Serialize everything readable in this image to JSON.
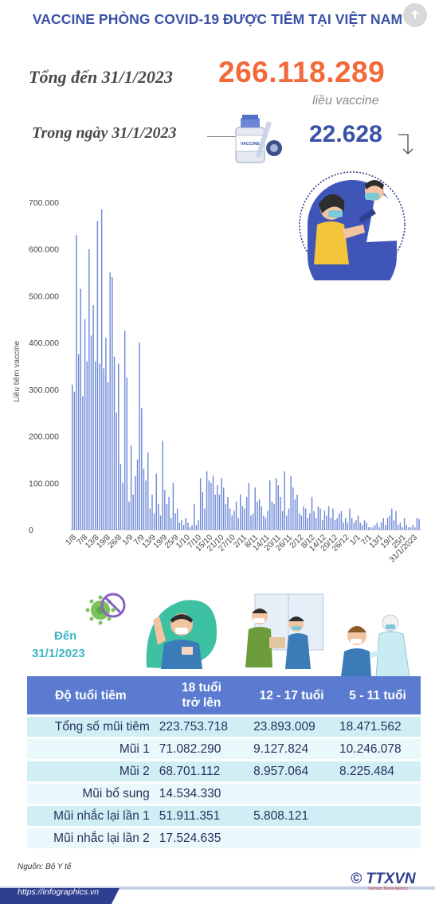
{
  "header": {
    "title": "VACCINE PHÒNG COVID-19 ĐƯỢC TIÊM TẠI VIỆT NAM"
  },
  "summary": {
    "total_label": "Tổng đến 31/1/2023",
    "total_value": "266.118.289",
    "total_unit": "liều vaccine",
    "day_label": "Trong ngày 31/1/2023",
    "day_value": "22.628",
    "vial_label": "VACCINE"
  },
  "chart_data": {
    "type": "bar",
    "ylabel": "Liều tiêm vaccine",
    "ylim": [
      0,
      700000
    ],
    "yticks": [
      "0",
      "100.000",
      "200.000",
      "300.000",
      "400.000",
      "500.000",
      "600.000",
      "700.000"
    ],
    "xticks": [
      "1/8",
      "7/8",
      "13/8",
      "19/8",
      "26/8",
      "1/9",
      "7/9",
      "13/9",
      "19/9",
      "25/9",
      "1/10",
      "7/10",
      "15/10",
      "21/10",
      "27/10",
      "2/11",
      "8/11",
      "14/11",
      "20/11",
      "26/11",
      "2/12",
      "8/12",
      "14/12",
      "20/12",
      "26/12",
      "1/1",
      "7/1",
      "13/1",
      "19/1",
      "25/1",
      "31/1/2023"
    ],
    "values": [
      310000,
      295000,
      630000,
      375000,
      515000,
      285000,
      450000,
      360000,
      600000,
      415000,
      480000,
      360000,
      660000,
      355000,
      685000,
      345000,
      410000,
      315000,
      550000,
      540000,
      370000,
      250000,
      355000,
      140000,
      100000,
      425000,
      325000,
      60000,
      180000,
      75000,
      115000,
      150000,
      400000,
      260000,
      130000,
      105000,
      165000,
      45000,
      75000,
      35000,
      120000,
      55000,
      30000,
      190000,
      85000,
      55000,
      70000,
      25000,
      100000,
      35000,
      45000,
      15000,
      20000,
      10000,
      25000,
      15000,
      5000,
      10000,
      55000,
      10000,
      20000,
      110000,
      80000,
      45000,
      125000,
      105000,
      100000,
      115000,
      75000,
      95000,
      75000,
      110000,
      90000,
      55000,
      70000,
      45000,
      30000,
      40000,
      60000,
      25000,
      75000,
      50000,
      45000,
      70000,
      100000,
      30000,
      35000,
      90000,
      60000,
      65000,
      50000,
      30000,
      25000,
      40000,
      105000,
      60000,
      55000,
      110000,
      95000,
      70000,
      40000,
      125000,
      30000,
      45000,
      115000,
      90000,
      65000,
      75000,
      35000,
      30000,
      50000,
      45000,
      25000,
      35000,
      70000,
      40000,
      25000,
      50000,
      45000,
      20000,
      40000,
      30000,
      50000,
      25000,
      45000,
      20000,
      25000,
      35000,
      40000,
      15000,
      25000,
      15000,
      45000,
      25000,
      15000,
      20000,
      30000,
      15000,
      10000,
      20000,
      15000,
      5000,
      5000,
      5000,
      10000,
      15000,
      5000,
      15000,
      25000,
      10000,
      25000,
      30000,
      45000,
      20000,
      40000,
      10000,
      15000,
      5000,
      25000,
      10000,
      5000,
      5000,
      10000,
      5000,
      25000,
      22628
    ]
  },
  "coverage": {
    "as_of_line1": "Đến",
    "as_of_line2": "31/1/2023",
    "table": {
      "headers": [
        "Độ tuổi tiêm",
        "18 tuổi\ntrở lên",
        "12 - 17 tuổi",
        "5 - 11 tuổi"
      ],
      "rows": [
        [
          "Tổng số mũi tiêm",
          "223.753.718",
          "23.893.009",
          "18.471.562"
        ],
        [
          "Mũi 1",
          "71.082.290",
          "9.127.824",
          "10.246.078"
        ],
        [
          "Mũi 2",
          "68.701.112",
          "8.957.064",
          "8.225.484"
        ],
        [
          "Mũi bổ sung",
          "14.534.330",
          "",
          ""
        ],
        [
          "Mũi nhắc lại lần 1",
          "51.911.351",
          "5.808.121",
          ""
        ],
        [
          "Mũi nhắc lại lần 2",
          "17.524.635",
          "",
          ""
        ]
      ]
    }
  },
  "footer": {
    "source": "Nguồn: Bộ Y tế",
    "url": "https://infographics.vn",
    "logo": "© TTXVN",
    "logo_sub": "Vietnam News Agency"
  },
  "colors": {
    "accent_orange": "#f26a3a",
    "accent_blue": "#3a51a8",
    "bar_blue": "#6f8ad8",
    "table_header": "#5b7bd0",
    "row_light": "#cfeff5",
    "row_lighter": "#e9f8fb"
  },
  "icons": {
    "corner": "arrow-up-icon",
    "vial": "vaccine-vial-icon",
    "virus": "crossed-virus-icon"
  }
}
